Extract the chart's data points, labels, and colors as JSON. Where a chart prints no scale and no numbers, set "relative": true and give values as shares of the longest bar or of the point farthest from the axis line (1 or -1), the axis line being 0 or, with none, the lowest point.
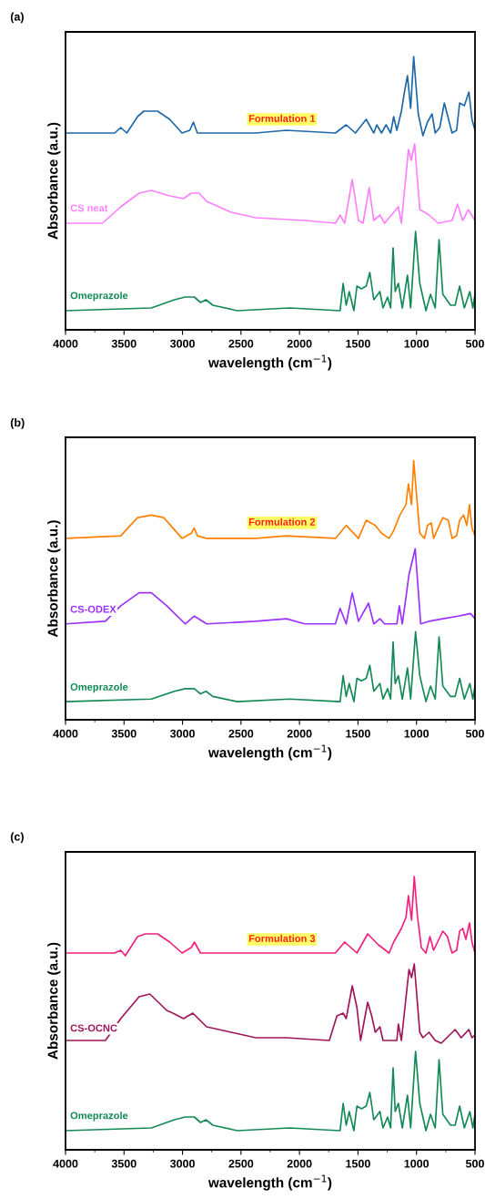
{
  "chart_data": [
    {
      "type": "line",
      "title": "(a)",
      "xlabel": "wavelength (cm$^{−1}$)",
      "ylabel": "Absorbance (a.u.)",
      "relative": true,
      "xlim": [
        4000,
        500
      ],
      "xticks": [
        4000,
        3500,
        3000,
        2500,
        2000,
        1500,
        1000,
        500
      ],
      "tick_labels": "x",
      "legend": false,
      "grid": false,
      "series": [
        {
          "name": "Formulation 1",
          "color": "#1f68a8",
          "x": [
            4000,
            3580,
            3528,
            3476,
            3384,
            3331,
            3213,
            3109,
            3004,
            2938,
            2907,
            2873,
            2794,
            2374,
            2112,
            1693,
            1601,
            1522,
            1430,
            1365,
            1339,
            1299,
            1260,
            1221,
            1195,
            1168,
            1129,
            1103,
            1077,
            1050,
            1024,
            998,
            985,
            945,
            906,
            867,
            840,
            801,
            762,
            696,
            657,
            631,
            591,
            552,
            526,
            500
          ],
          "values": [
            0.72,
            0.72,
            0.74,
            0.72,
            0.78,
            0.8,
            0.8,
            0.77,
            0.72,
            0.73,
            0.76,
            0.72,
            0.72,
            0.72,
            0.73,
            0.72,
            0.75,
            0.72,
            0.77,
            0.72,
            0.75,
            0.72,
            0.75,
            0.72,
            0.78,
            0.73,
            0.8,
            0.87,
            0.93,
            0.81,
            1.0,
            0.86,
            0.79,
            0.71,
            0.76,
            0.79,
            0.72,
            0.74,
            0.83,
            0.72,
            0.73,
            0.83,
            0.82,
            0.87,
            0.77,
            0.73
          ]
        },
        {
          "name": "CS neat",
          "color": "#ff80ff",
          "x": [
            4000,
            3685,
            3528,
            3371,
            3266,
            3109,
            2991,
            2925,
            2859,
            2794,
            2584,
            2374,
            1955,
            1693,
            1653,
            1614,
            1549,
            1496,
            1457,
            1404,
            1365,
            1312,
            1273,
            1155,
            1129,
            1069,
            1045,
            1016,
            972,
            893,
            814,
            696,
            649,
            605,
            557,
            500
          ],
          "values": [
            0.39,
            0.39,
            0.45,
            0.5,
            0.51,
            0.49,
            0.48,
            0.5,
            0.5,
            0.47,
            0.43,
            0.41,
            0.4,
            0.39,
            0.42,
            0.39,
            0.55,
            0.4,
            0.39,
            0.52,
            0.4,
            0.42,
            0.39,
            0.45,
            0.39,
            0.66,
            0.62,
            0.68,
            0.44,
            0.42,
            0.39,
            0.4,
            0.46,
            0.4,
            0.44,
            0.4
          ]
        },
        {
          "name": "Omeprazole",
          "color": "#138a55",
          "x": [
            4000,
            3266,
            3069,
            2977,
            2899,
            2846,
            2799,
            2741,
            2532,
            2086,
            1653,
            1627,
            1601,
            1575,
            1535,
            1509,
            1470,
            1430,
            1399,
            1365,
            1313,
            1286,
            1247,
            1221,
            1200,
            1182,
            1155,
            1121,
            1077,
            1050,
            1008,
            972,
            919,
            880,
            840,
            807,
            775,
            709,
            670,
            631,
            591,
            544,
            518,
            500
          ],
          "values": [
            0.07,
            0.08,
            0.11,
            0.12,
            0.12,
            0.1,
            0.11,
            0.09,
            0.07,
            0.08,
            0.07,
            0.17,
            0.09,
            0.14,
            0.07,
            0.16,
            0.15,
            0.16,
            0.21,
            0.11,
            0.14,
            0.08,
            0.12,
            0.08,
            0.3,
            0.14,
            0.17,
            0.08,
            0.2,
            0.08,
            0.36,
            0.17,
            0.07,
            0.13,
            0.08,
            0.33,
            0.13,
            0.09,
            0.09,
            0.16,
            0.08,
            0.14,
            0.08,
            0.13
          ]
        }
      ]
    },
    {
      "type": "line",
      "title": "(b)",
      "xlabel": "wavelength (cm$^{−1}$)",
      "ylabel": "Absorbance (a.u.)",
      "relative": true,
      "xlim": [
        4000,
        500
      ],
      "xticks": [
        4000,
        3500,
        3000,
        2500,
        2000,
        1500,
        1000,
        500
      ],
      "tick_labels": "x",
      "legend": false,
      "grid": false,
      "series": [
        {
          "name": "Formulation 2",
          "color": "#ff8000",
          "x": [
            4000,
            3528,
            3384,
            3266,
            3161,
            3004,
            2925,
            2899,
            2873,
            2794,
            2374,
            2112,
            1693,
            1601,
            1496,
            1430,
            1352,
            1299,
            1234,
            1195,
            1142,
            1090,
            1069,
            1042,
            1024,
            998,
            972,
            932,
            906,
            874,
            854,
            775,
            728,
            696,
            657,
            631,
            597,
            570,
            547,
            526,
            500
          ],
          "values": [
            0.7,
            0.71,
            0.78,
            0.79,
            0.78,
            0.7,
            0.72,
            0.74,
            0.71,
            0.7,
            0.7,
            0.71,
            0.7,
            0.75,
            0.7,
            0.77,
            0.75,
            0.72,
            0.7,
            0.73,
            0.79,
            0.83,
            0.91,
            0.83,
            1.0,
            0.86,
            0.72,
            0.7,
            0.75,
            0.76,
            0.7,
            0.78,
            0.77,
            0.7,
            0.71,
            0.77,
            0.79,
            0.75,
            0.83,
            0.74,
            0.71
          ]
        },
        {
          "name": "CS-ODEX",
          "color": "#9b30ff",
          "x": [
            4000,
            3659,
            3528,
            3371,
            3266,
            3135,
            2977,
            2899,
            2794,
            2374,
            2112,
            1955,
            1693,
            1653,
            1601,
            1549,
            1496,
            1410,
            1365,
            1313,
            1273,
            1168,
            1147,
            1121,
            1064,
            1011,
            964,
            893,
            775,
            644,
            539,
            500
          ],
          "values": [
            0.37,
            0.38,
            0.44,
            0.49,
            0.49,
            0.44,
            0.37,
            0.4,
            0.37,
            0.38,
            0.39,
            0.37,
            0.37,
            0.43,
            0.37,
            0.49,
            0.38,
            0.45,
            0.37,
            0.39,
            0.37,
            0.37,
            0.44,
            0.37,
            0.56,
            0.66,
            0.37,
            0.38,
            0.39,
            0.4,
            0.41,
            0.39
          ]
        },
        {
          "name": "Omeprazole",
          "color": "#138a55",
          "x": [
            4000,
            3266,
            3069,
            2977,
            2899,
            2846,
            2799,
            2741,
            2532,
            2086,
            1653,
            1627,
            1601,
            1575,
            1535,
            1509,
            1470,
            1430,
            1399,
            1365,
            1313,
            1286,
            1247,
            1221,
            1200,
            1182,
            1155,
            1121,
            1077,
            1050,
            1008,
            972,
            919,
            880,
            840,
            807,
            775,
            709,
            670,
            631,
            591,
            544,
            518,
            500
          ],
          "values": [
            0.07,
            0.08,
            0.11,
            0.12,
            0.12,
            0.1,
            0.11,
            0.09,
            0.07,
            0.08,
            0.07,
            0.17,
            0.09,
            0.14,
            0.07,
            0.16,
            0.15,
            0.16,
            0.21,
            0.11,
            0.14,
            0.08,
            0.12,
            0.08,
            0.3,
            0.14,
            0.17,
            0.08,
            0.2,
            0.08,
            0.34,
            0.17,
            0.07,
            0.13,
            0.08,
            0.32,
            0.13,
            0.09,
            0.09,
            0.16,
            0.08,
            0.14,
            0.08,
            0.13
          ]
        }
      ]
    },
    {
      "type": "line",
      "title": "(c)",
      "xlabel": "wavelength (cm$^{−1}$)",
      "ylabel": "Absorbance (a.u.)",
      "relative": true,
      "xlim": [
        4000,
        500
      ],
      "xticks": [
        4000,
        3500,
        3000,
        2500,
        2000,
        1500,
        1000,
        500
      ],
      "tick_labels": "x",
      "legend": false,
      "grid": false,
      "series": [
        {
          "name": "Formulation 3",
          "color": "#f2207f",
          "x": [
            4000,
            3580,
            3528,
            3489,
            3384,
            3318,
            3213,
            3109,
            3004,
            2925,
            2899,
            2846,
            2374,
            2112,
            1693,
            1614,
            1509,
            1417,
            1326,
            1234,
            1195,
            1129,
            1090,
            1069,
            1042,
            1019,
            993,
            959,
            919,
            885,
            854,
            775,
            736,
            696,
            657,
            631,
            605,
            578,
            547,
            526,
            500
          ],
          "values": [
            0.72,
            0.72,
            0.73,
            0.71,
            0.78,
            0.79,
            0.79,
            0.76,
            0.72,
            0.74,
            0.76,
            0.72,
            0.72,
            0.72,
            0.72,
            0.76,
            0.72,
            0.79,
            0.75,
            0.72,
            0.76,
            0.81,
            0.85,
            0.93,
            0.84,
            1.0,
            0.86,
            0.74,
            0.72,
            0.78,
            0.73,
            0.8,
            0.78,
            0.72,
            0.73,
            0.8,
            0.81,
            0.77,
            0.83,
            0.76,
            0.72
          ]
        },
        {
          "name": "CS-OCNC",
          "color": "#a0165a",
          "x": [
            4000,
            3659,
            3528,
            3371,
            3279,
            3135,
            3082,
            2991,
            2912,
            2794,
            2584,
            2374,
            2112,
            1745,
            1680,
            1627,
            1601,
            1549,
            1509,
            1478,
            1417,
            1383,
            1352,
            1313,
            1286,
            1168,
            1155,
            1129,
            1064,
            1042,
            1019,
            972,
            945,
            893,
            840,
            788,
            670,
            618,
            552,
            526,
            500
          ],
          "values": [
            0.4,
            0.4,
            0.48,
            0.56,
            0.57,
            0.51,
            0.5,
            0.48,
            0.5,
            0.45,
            0.43,
            0.41,
            0.41,
            0.4,
            0.49,
            0.5,
            0.48,
            0.6,
            0.52,
            0.4,
            0.54,
            0.49,
            0.43,
            0.45,
            0.4,
            0.4,
            0.46,
            0.4,
            0.66,
            0.63,
            0.68,
            0.43,
            0.41,
            0.43,
            0.4,
            0.39,
            0.44,
            0.41,
            0.44,
            0.41,
            0.42
          ]
        },
        {
          "name": "Omeprazole",
          "color": "#138a55",
          "x": [
            4000,
            3266,
            3069,
            2977,
            2899,
            2846,
            2799,
            2741,
            2532,
            2086,
            1653,
            1627,
            1601,
            1575,
            1535,
            1509,
            1470,
            1430,
            1399,
            1365,
            1313,
            1286,
            1247,
            1221,
            1200,
            1182,
            1155,
            1121,
            1077,
            1050,
            1008,
            972,
            919,
            880,
            840,
            807,
            775,
            709,
            670,
            631,
            591,
            544,
            518,
            500
          ],
          "values": [
            0.07,
            0.08,
            0.11,
            0.12,
            0.12,
            0.1,
            0.11,
            0.09,
            0.07,
            0.08,
            0.07,
            0.17,
            0.09,
            0.14,
            0.07,
            0.16,
            0.15,
            0.16,
            0.21,
            0.11,
            0.14,
            0.08,
            0.12,
            0.08,
            0.3,
            0.14,
            0.17,
            0.08,
            0.2,
            0.08,
            0.36,
            0.17,
            0.07,
            0.13,
            0.08,
            0.33,
            0.13,
            0.09,
            0.09,
            0.16,
            0.08,
            0.14,
            0.08,
            0.13
          ]
        }
      ]
    }
  ]
}
